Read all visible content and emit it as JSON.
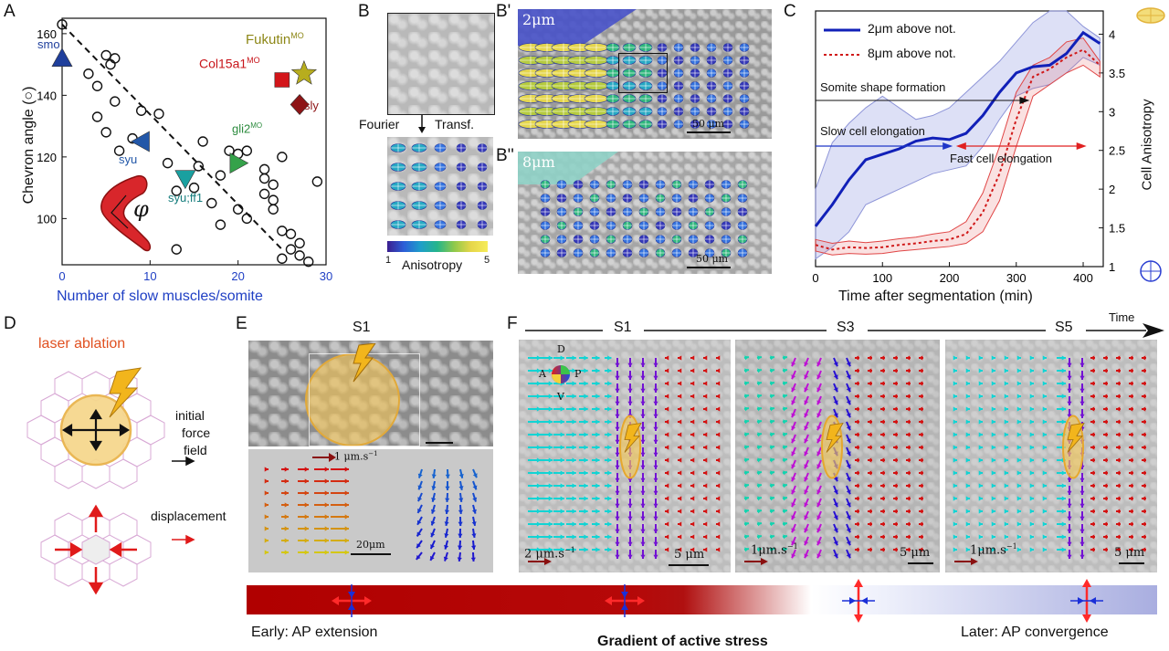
{
  "panels": {
    "A": {
      "letter": "A",
      "ylabel": "Chevron angle (",
      "ylabel_symbol": "○",
      "ylabel_end": ")",
      "xlabel": "Number of slow muscles/somite",
      "xticks": [
        "0",
        "10",
        "20",
        "30"
      ],
      "yticks": [
        "100",
        "120",
        "140",
        "160"
      ],
      "phi": "φ",
      "labels": {
        "smo": "smo",
        "fukutin": "Fukutin",
        "fukutin_sup": "MO",
        "col15a1": "Col15a1",
        "col15a1_sup": "MO",
        "sly": "sly",
        "gli2": "gli2",
        "gli2_sup": "MO",
        "syu": "syu",
        "syu_ff1": "syu;ff1"
      },
      "colors": {
        "smo": "#1f3f9c",
        "fukutin": "#b7ad1e",
        "col15a1": "#d3151a",
        "sly": "#8e1416",
        "gli2": "#35a24a",
        "syu": "#2257a8",
        "syu_ff1": "#1aa0a0"
      }
    },
    "B": {
      "letter": "B",
      "letter_b1": "B'",
      "letter_b2": "B''",
      "fourier": "Fourier",
      "transf": "Transf.",
      "colorbar_min": "1",
      "colorbar_max": "5",
      "colorbar_label": "Anisotropy",
      "depth_b1": "2μm",
      "depth_b2": "8μm",
      "scale_b1": "50 μm",
      "scale_b2": "50 μm"
    },
    "C": {
      "letter": "C",
      "legend_1": "2μm above not.",
      "legend_2": "8μm above not.",
      "xlabel": "Time after segmentation (min)",
      "ylabel": "Cell Anisotropy",
      "xticks": [
        "0",
        "100",
        "200",
        "300",
        "400"
      ],
      "yticks": [
        "1",
        "1.5",
        "2",
        "2.5",
        "3",
        "3.5",
        "4"
      ],
      "annot_1": "Somite shape formation",
      "annot_2": "Slow cell elongation",
      "annot_3": "Fast cell elongation"
    },
    "D": {
      "letter": "D",
      "title": "laser ablation",
      "force_1": "initial",
      "force_2": "force",
      "force_3": "field",
      "displacement": "displacement"
    },
    "E": {
      "letter": "E",
      "stage": "S1",
      "velocity": "1 μm.s",
      "velocity_exp": "−1",
      "scale": "20μm"
    },
    "F": {
      "letter": "F",
      "stage_1": "S1",
      "stage_2": "S3",
      "stage_3": "S5",
      "time": "Time",
      "compass_d": "D",
      "compass_a": "A",
      "compass_p": "P",
      "compass_v": "V",
      "vel_1": "2 μm.s",
      "vel_2": "1μm.s",
      "vel_3": "1μm.s",
      "vel_exp": "−1",
      "scale_1": "5 μm",
      "scale_2": "5 μm",
      "scale_3": "5 μm"
    }
  },
  "bottom": {
    "early": "Early:  AP extension",
    "gradient": "Gradient of active stress",
    "later": "Later:  AP convergence"
  },
  "chart_data": [
    {
      "type": "scatter",
      "xlabel": "Number of slow muscles/somite",
      "ylabel": "Chevron angle (○)",
      "xlim": [
        0,
        30
      ],
      "ylim": [
        85,
        165
      ],
      "series": [
        {
          "values": [
            [
              0,
              163
            ],
            [
              3,
              147
            ],
            [
              4,
              143
            ],
            [
              5,
              153
            ],
            [
              5.5,
              150
            ],
            [
              6,
              152
            ],
            [
              4,
              133
            ],
            [
              5,
              128
            ],
            [
              6,
              138
            ],
            [
              6.5,
              122
            ],
            [
              8,
              126
            ],
            [
              9,
              135
            ],
            [
              11,
              134
            ],
            [
              12,
              118
            ],
            [
              13,
              109
            ],
            [
              15,
              110
            ],
            [
              15.5,
              117
            ],
            [
              16,
              125
            ],
            [
              17,
              105
            ],
            [
              18,
              114
            ],
            [
              18,
              98
            ],
            [
              19,
              122
            ],
            [
              20,
              121
            ],
            [
              20,
              103
            ],
            [
              21,
              100
            ],
            [
              21,
              122
            ],
            [
              23,
              116
            ],
            [
              23,
              113
            ],
            [
              23,
              108
            ],
            [
              24,
              111
            ],
            [
              24,
              106
            ],
            [
              24,
              103
            ],
            [
              25,
              120
            ],
            [
              25,
              96
            ],
            [
              25,
              87
            ],
            [
              26,
              95
            ],
            [
              26,
              90
            ],
            [
              27,
              92
            ],
            [
              27,
              88
            ],
            [
              28,
              86
            ],
            [
              29,
              112
            ],
            [
              13,
              90
            ]
          ]
        },
        {
          "name": "smo",
          "values": [
            [
              0,
              152
            ]
          ]
        },
        {
          "name": "syu",
          "values": [
            [
              9,
              125
            ]
          ]
        },
        {
          "name": "syu;ff1",
          "values": [
            [
              14,
              113
            ]
          ]
        },
        {
          "name": "gli2",
          "values": [
            [
              20,
              118
            ]
          ]
        },
        {
          "name": "Col15a1",
          "values": [
            [
              25,
              145
            ]
          ]
        },
        {
          "name": "Fukutin",
          "values": [
            [
              27.5,
              147
            ]
          ]
        },
        {
          "name": "sly",
          "values": [
            [
              27,
              137
            ]
          ]
        }
      ],
      "trend": [
        [
          0,
          163
        ],
        [
          25,
          90
        ]
      ]
    },
    {
      "type": "line",
      "xlabel": "Time after segmentation (min)",
      "ylabel": "Cell Anisotropy",
      "xlim": [
        0,
        430
      ],
      "ylim": [
        1,
        4.3
      ],
      "x": [
        0,
        25,
        50,
        75,
        100,
        125,
        150,
        175,
        200,
        225,
        250,
        275,
        300,
        325,
        350,
        375,
        400,
        425
      ],
      "series": [
        {
          "name": "2μm above not.",
          "values": [
            1.52,
            1.8,
            2.12,
            2.38,
            2.45,
            2.52,
            2.62,
            2.66,
            2.64,
            2.72,
            2.95,
            3.25,
            3.5,
            3.58,
            3.6,
            3.75,
            4.02,
            3.88
          ]
        },
        {
          "name": "8μm above not.",
          "values": [
            1.28,
            1.22,
            1.25,
            1.24,
            1.25,
            1.28,
            1.3,
            1.33,
            1.35,
            1.42,
            1.7,
            2.2,
            2.9,
            3.45,
            3.55,
            3.7,
            3.8,
            3.6
          ]
        }
      ],
      "band_2um_upper": [
        2.0,
        2.6,
        2.85,
        3.05,
        3.2,
        3.05,
        2.9,
        2.95,
        3.05,
        3.25,
        3.45,
        3.65,
        3.9,
        4.15,
        4.3,
        4.3,
        4.1,
        3.95
      ],
      "band_2um_lower": [
        1.1,
        1.25,
        1.45,
        1.8,
        1.9,
        2.0,
        2.1,
        2.2,
        2.25,
        2.3,
        2.55,
        2.9,
        3.2,
        3.3,
        3.35,
        3.5,
        3.7,
        3.6
      ],
      "band_8um_upper": [
        1.35,
        1.3,
        1.33,
        1.31,
        1.33,
        1.36,
        1.38,
        1.42,
        1.45,
        1.58,
        1.95,
        2.55,
        3.25,
        3.6,
        3.7,
        3.9,
        3.95,
        3.65
      ],
      "band_8um_lower": [
        1.2,
        1.15,
        1.17,
        1.16,
        1.17,
        1.2,
        1.22,
        1.24,
        1.26,
        1.3,
        1.45,
        1.85,
        2.55,
        3.2,
        3.35,
        3.5,
        3.6,
        3.45
      ]
    }
  ]
}
